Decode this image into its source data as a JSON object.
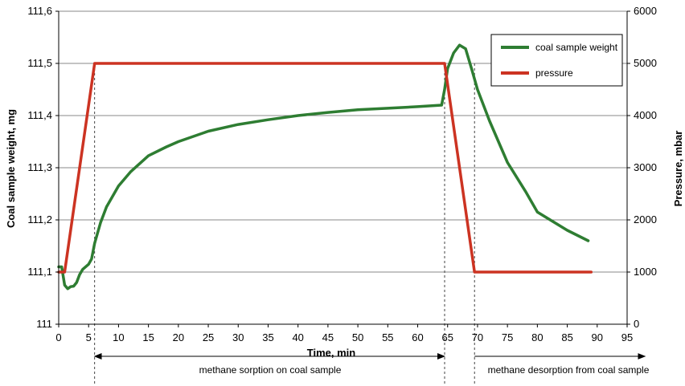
{
  "chart_data": {
    "type": "line",
    "xlabel": "Time, min",
    "ylabel_left": "Coal sample weight, mg",
    "ylabel_right": "Pressure, mbar",
    "xlim": [
      0,
      95
    ],
    "ylim_left": [
      111.0,
      111.6
    ],
    "ylim_right": [
      0,
      6000
    ],
    "x_ticks": [
      "0",
      "5",
      "10",
      "15",
      "20",
      "25",
      "30",
      "35",
      "40",
      "45",
      "50",
      "55",
      "60",
      "65",
      "70",
      "75",
      "80",
      "85",
      "90",
      "95"
    ],
    "y_left_ticks": [
      "111",
      "111,1",
      "111,2",
      "111,3",
      "111,4",
      "111,5",
      "111,6"
    ],
    "y_right_ticks": [
      "0",
      "1000",
      "2000",
      "3000",
      "4000",
      "5000",
      "6000"
    ],
    "grid": "horizontal",
    "legend_position": "top-right",
    "series": [
      {
        "name": "coal sample weight",
        "axis": "left",
        "color": "#2e7d32",
        "x": [
          0,
          0.5,
          1,
          1.5,
          2,
          2.5,
          3,
          3.5,
          4,
          5,
          5.5,
          6,
          7,
          8,
          10,
          12,
          15,
          18,
          20,
          25,
          30,
          35,
          40,
          45,
          50,
          55,
          60,
          64,
          64.5,
          65,
          66,
          67,
          68,
          69,
          70,
          72,
          75,
          78,
          80,
          85,
          88.5
        ],
        "y": [
          111.11,
          111.11,
          111.075,
          111.068,
          111.072,
          111.073,
          111.08,
          111.095,
          111.105,
          111.115,
          111.125,
          111.155,
          111.195,
          111.225,
          111.265,
          111.292,
          111.323,
          111.34,
          111.35,
          111.37,
          111.383,
          111.392,
          111.4,
          111.406,
          111.411,
          111.414,
          111.417,
          111.42,
          111.45,
          111.49,
          111.52,
          111.535,
          111.528,
          111.49,
          111.45,
          111.39,
          111.31,
          111.255,
          111.215,
          111.18,
          111.16
        ]
      },
      {
        "name": "pressure",
        "axis": "right",
        "color": "#cc3322",
        "x": [
          0,
          1,
          6,
          64.5,
          69.5,
          89
        ],
        "y": [
          1000,
          1000,
          5000,
          5000,
          1000,
          1000
        ]
      }
    ],
    "annotations": [
      {
        "text": "methane sorption on coal sample",
        "x_start": 6,
        "x_end": 64.5
      },
      {
        "text": "methane desorption from coal sample",
        "x_start": 69.5,
        "x_end": 98
      }
    ],
    "marker_lines_x": [
      6,
      64.5,
      69.5
    ]
  }
}
